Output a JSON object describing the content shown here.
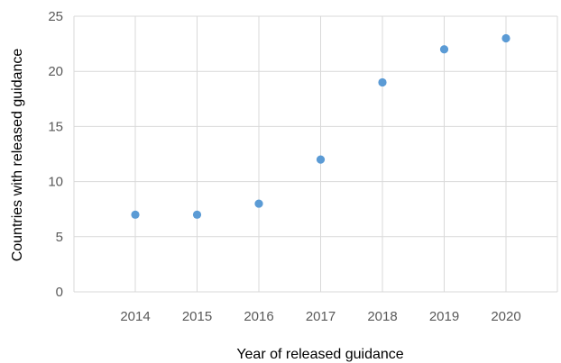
{
  "chart_data": {
    "type": "scatter",
    "title": "",
    "xlabel": "Year of released guidance",
    "ylabel": "Countries with released guidance",
    "categories": [
      "2014",
      "2015",
      "2016",
      "2017",
      "2018",
      "2019",
      "2020"
    ],
    "series": [
      {
        "values": [
          7,
          7,
          8,
          12,
          19,
          22,
          23
        ]
      }
    ],
    "ylim": [
      0,
      25
    ],
    "yticks": [
      "0",
      "5",
      "10",
      "15",
      "20",
      "25"
    ],
    "grid": "vertical and horizontal gridlines",
    "legend": "none",
    "colors": {
      "marker": "#5B9BD5",
      "grid": "#D9D9D9",
      "tick_text": "#595959",
      "axis_title": "#000000"
    }
  }
}
